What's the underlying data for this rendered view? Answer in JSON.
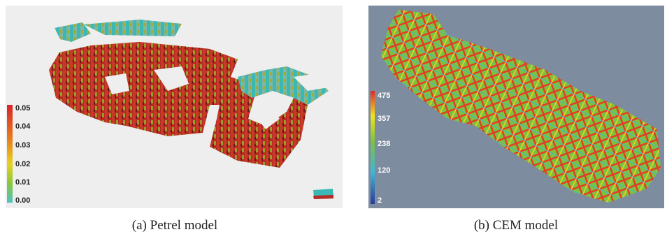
{
  "panels": [
    {
      "caption": "(a) Petrel model",
      "colorbar": {
        "labels": [
          "0.05",
          "0.04",
          "0.03",
          "0.02",
          "0.01",
          "0.00"
        ]
      }
    },
    {
      "caption": "(b) CEM model",
      "colorbar": {
        "labels": [
          "475",
          "357",
          "238",
          "120",
          "2"
        ]
      }
    }
  ]
}
